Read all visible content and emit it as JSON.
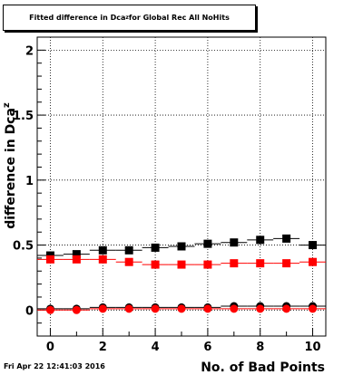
{
  "title": {
    "prefix": "Fitted difference in Dca",
    "sub": "z",
    "suffix": " for Global Rec All NoHits"
  },
  "timestamp": "Fri Apr 22 12:41:03 2016",
  "chart_data": {
    "type": "scatter",
    "xlabel": "No. of Bad Points",
    "ylabel": "difference in Dca",
    "ylabel_sub": "z",
    "xlim": [
      -0.5,
      10.5
    ],
    "ylim": [
      -0.2,
      2.1
    ],
    "xticks": [
      0,
      2,
      4,
      6,
      8,
      10
    ],
    "yticks": [
      0,
      0.5,
      1,
      1.5,
      2
    ],
    "ytick_labels": [
      "0",
      "0.5",
      "1",
      "1.5",
      "2"
    ],
    "grid": true,
    "series": [
      {
        "marker": "square",
        "color": "#000000",
        "x": [
          0,
          1,
          2,
          3,
          4,
          5,
          6,
          7,
          8,
          9,
          10
        ],
        "y": [
          0.42,
          0.43,
          0.46,
          0.46,
          0.48,
          0.49,
          0.51,
          0.52,
          0.54,
          0.55,
          0.5
        ]
      },
      {
        "marker": "square",
        "color": "#ff0000",
        "x": [
          0,
          1,
          2,
          3,
          4,
          5,
          6,
          7,
          8,
          9,
          10
        ],
        "y": [
          0.39,
          0.39,
          0.39,
          0.37,
          0.35,
          0.35,
          0.35,
          0.36,
          0.36,
          0.36,
          0.37
        ]
      },
      {
        "marker": "circle",
        "color": "#000000",
        "x": [
          0,
          1,
          2,
          3,
          4,
          5,
          6,
          7,
          8,
          9,
          10
        ],
        "y": [
          0.01,
          0.01,
          0.02,
          0.02,
          0.02,
          0.02,
          0.02,
          0.03,
          0.03,
          0.03,
          0.03
        ]
      },
      {
        "marker": "circle",
        "color": "#ff0000",
        "x": [
          0,
          1,
          2,
          3,
          4,
          5,
          6,
          7,
          8,
          9,
          10
        ],
        "y": [
          0.0,
          0.0,
          0.01,
          0.01,
          0.01,
          0.01,
          0.01,
          0.01,
          0.01,
          0.01,
          0.01
        ]
      }
    ]
  }
}
